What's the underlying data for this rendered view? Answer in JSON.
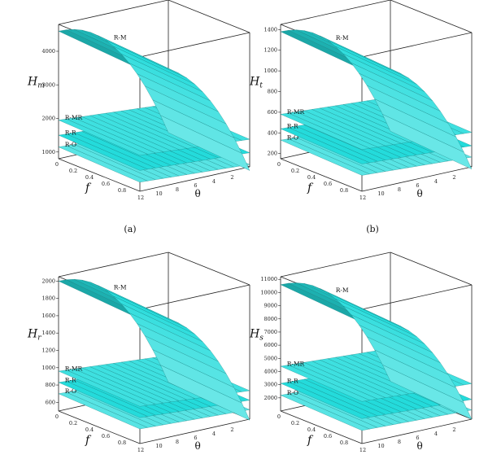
{
  "chart_data": [
    {
      "type": "surface",
      "panel_label": "(a)",
      "zlabel": "H",
      "zlabel_sub": "m",
      "xlabel": "f",
      "ylabel": "θ",
      "f_ticks": [
        "0",
        "0.2",
        "0.4",
        "0.6",
        "0.8"
      ],
      "theta_ticks": [
        "12",
        "10",
        "8",
        "6",
        "4",
        "2"
      ],
      "z_ticks": [
        "1000",
        "2000",
        "3000",
        "4000"
      ],
      "zlim": [
        800,
        4800
      ],
      "series": [
        {
          "name": "R-M",
          "z_at_theta_min": 4600,
          "z_at_theta_max": 850
        },
        {
          "name": "R-MR",
          "z_at_theta_min": 1950,
          "z_at_theta_max": 1700
        },
        {
          "name": "R-R",
          "z_at_theta_min": 1500,
          "z_at_theta_max": 1300
        },
        {
          "name": "R-O",
          "z_at_theta_min": 1150,
          "z_at_theta_max": 950
        }
      ]
    },
    {
      "type": "surface",
      "panel_label": "(b)",
      "zlabel": "H",
      "zlabel_sub": "t",
      "xlabel": "f",
      "ylabel": "θ",
      "f_ticks": [
        "0",
        "0.2",
        "0.4",
        "0.6",
        "0.8"
      ],
      "theta_ticks": [
        "12",
        "10",
        "8",
        "6",
        "4",
        "2"
      ],
      "z_ticks": [
        "200",
        "400",
        "600",
        "800",
        "1000",
        "1200",
        "1400"
      ],
      "zlim": [
        150,
        1450
      ],
      "series": [
        {
          "name": "R-M",
          "z_at_theta_min": 1380,
          "z_at_theta_max": 180
        },
        {
          "name": "R-MR",
          "z_at_theta_min": 580,
          "z_at_theta_max": 510
        },
        {
          "name": "R-R",
          "z_at_theta_min": 440,
          "z_at_theta_max": 380
        },
        {
          "name": "R-O",
          "z_at_theta_min": 330,
          "z_at_theta_max": 270
        }
      ]
    },
    {
      "type": "surface",
      "panel_label": "",
      "zlabel": "H",
      "zlabel_sub": "r",
      "xlabel": "f",
      "ylabel": "θ",
      "f_ticks": [
        "0",
        "0.2",
        "0.4",
        "0.6",
        "0.8"
      ],
      "theta_ticks": [
        "12",
        "10",
        "8",
        "6",
        "4",
        "2"
      ],
      "z_ticks": [
        "600",
        "800",
        "1000",
        "1200",
        "1400",
        "1600",
        "1800",
        "2000"
      ],
      "zlim": [
        500,
        2050
      ],
      "series": [
        {
          "name": "R-M",
          "z_at_theta_min": 2000,
          "z_at_theta_max": 550
        },
        {
          "name": "R-MR",
          "z_at_theta_min": 960,
          "z_at_theta_max": 860
        },
        {
          "name": "R-R",
          "z_at_theta_min": 830,
          "z_at_theta_max": 750
        },
        {
          "name": "R-O",
          "z_at_theta_min": 700,
          "z_at_theta_max": 640
        }
      ]
    },
    {
      "type": "surface",
      "panel_label": "",
      "zlabel": "H",
      "zlabel_sub": "s",
      "xlabel": "f",
      "ylabel": "θ",
      "f_ticks": [
        "0",
        "0.2",
        "0.4",
        "0.6",
        "0.8"
      ],
      "theta_ticks": [
        "12",
        "10",
        "8",
        "6",
        "4",
        "2"
      ],
      "z_ticks": [
        "2000",
        "3000",
        "4000",
        "5000",
        "6000",
        "7000",
        "8000",
        "9000",
        "10000",
        "11000"
      ],
      "zlim": [
        1000,
        11200
      ],
      "series": [
        {
          "name": "R-M",
          "z_at_theta_min": 10600,
          "z_at_theta_max": 1400
        },
        {
          "name": "R-MR",
          "z_at_theta_min": 4400,
          "z_at_theta_max": 3900
        },
        {
          "name": "R-R",
          "z_at_theta_min": 3100,
          "z_at_theta_max": 2700
        },
        {
          "name": "R-O",
          "z_at_theta_min": 2200,
          "z_at_theta_max": 1900
        }
      ]
    }
  ]
}
